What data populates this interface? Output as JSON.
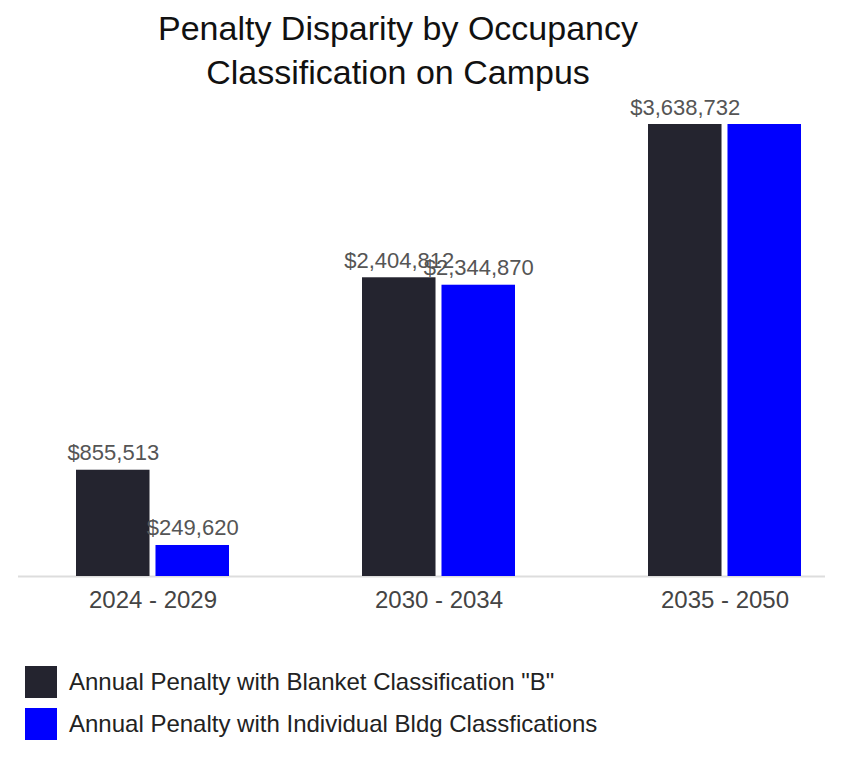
{
  "chart_data": {
    "type": "bar",
    "title": "Penalty Disparity by Occupancy Classification on Campus",
    "categories": [
      "2024 - 2029",
      "2030 - 2034",
      "2035 - 2050"
    ],
    "series": [
      {
        "name": "Annual Penalty with Blanket Classification \"B\"",
        "color": "#24242f",
        "values": [
          855513,
          2404812,
          3638732
        ],
        "value_labels": [
          "$855,513",
          "$2,404,812",
          "$3,638,732"
        ]
      },
      {
        "name": "Annual Penalty with Individual Bldg Classfications",
        "color": "#0000ff",
        "values": [
          249620,
          2344870,
          3638732
        ],
        "value_labels": [
          "$249,620",
          "$2,344,870",
          null
        ]
      }
    ],
    "ylim": [
      0,
      3638732
    ],
    "data_labels": true,
    "tick_labels": "x",
    "legend": "bottom"
  }
}
